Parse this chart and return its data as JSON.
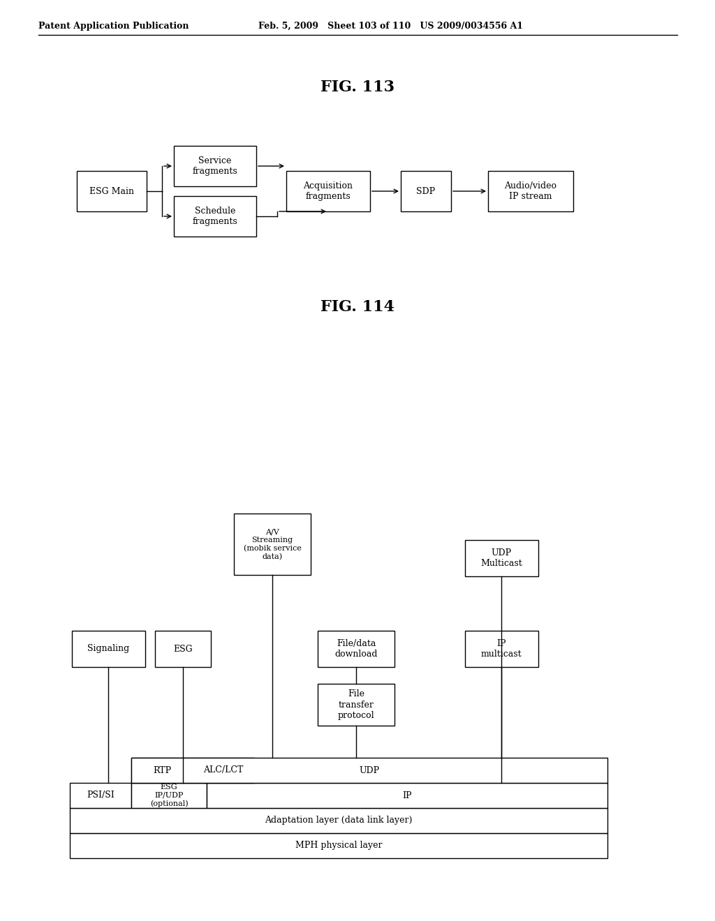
{
  "background_color": "#ffffff",
  "header_left": "Patent Application Publication",
  "header_mid": "Feb. 5, 2009   Sheet 103 of 110   US 2009/0034556 A1",
  "fig113_title": "FIG. 113",
  "fig114_title": "FIG. 114"
}
